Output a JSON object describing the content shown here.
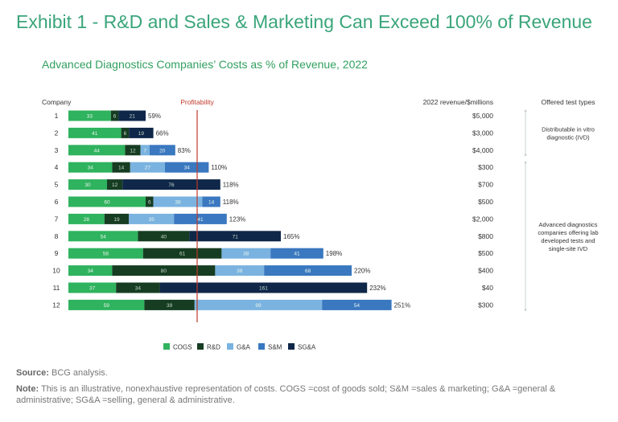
{
  "title": "Exhibit 1 - R&D and Sales & Marketing Can Exceed 100% of Revenue",
  "subtitle": "Advanced Diagnostics Companies’ Costs as % of Revenue, 2022",
  "colors": {
    "cogs": "#2fb35e",
    "rd": "#163d22",
    "ga": "#7ab3e0",
    "sm": "#3a78c0",
    "sga": "#0f2748",
    "profit_line": "#c0392b"
  },
  "chart_data": {
    "type": "bar",
    "orientation": "horizontal",
    "stacked": true,
    "xlabel": "",
    "ylabel": "Company",
    "company_header": "Company",
    "profitability_label": "Profitability",
    "profitability_value": 100,
    "revenue_header": "2022 revenue/$millions",
    "types_header": "Offered test types",
    "categories": [
      "1",
      "2",
      "3",
      "4",
      "5",
      "6",
      "7",
      "8",
      "9",
      "10",
      "11",
      "12"
    ],
    "series": [
      {
        "name": "COGS",
        "values": [
          33,
          41,
          44,
          34,
          30,
          60,
          28,
          54,
          58,
          34,
          37,
          59
        ]
      },
      {
        "name": "R&D",
        "values": [
          6,
          6,
          12,
          14,
          12,
          6,
          19,
          40,
          61,
          80,
          34,
          39
        ]
      },
      {
        "name": "G&A",
        "values": [
          0,
          0,
          7,
          27,
          0,
          38,
          35,
          0,
          38,
          38,
          0,
          99
        ]
      },
      {
        "name": "S&M",
        "values": [
          0,
          0,
          20,
          34,
          0,
          14,
          41,
          0,
          41,
          68,
          0,
          54
        ]
      },
      {
        "name": "SG&A",
        "values": [
          21,
          19,
          0,
          0,
          76,
          0,
          0,
          71,
          0,
          0,
          161,
          0
        ]
      }
    ],
    "totals": [
      "59%",
      "66%",
      "83%",
      "110%",
      "118%",
      "118%",
      "123%",
      "165%",
      "198%",
      "220%",
      "232%",
      "251%"
    ],
    "revenue": [
      "$5,000",
      "$3,000",
      "$4,000",
      "$300",
      "$700",
      "$500",
      "$2,000",
      "$800",
      "$500",
      "$400",
      "$40",
      "$300"
    ],
    "test_types": [
      {
        "label": "Distributable in vitro diagnostic (IVD)",
        "lines": [
          "Distributable in vitro",
          "diagnostic (IVD)"
        ],
        "from": "1",
        "to": "3"
      },
      {
        "label": "Advanced diagnostics companies offering lab developed tests and single-site IVD",
        "lines": [
          "Advanced diagnostics",
          "companies offering lab",
          "developed tests and",
          "single-site IVD"
        ],
        "from": "4",
        "to": "12"
      }
    ],
    "legend_position": "bottom"
  },
  "source": {
    "label": "Source:",
    "text": "BCG analysis."
  },
  "note": {
    "label": "Note:",
    "text": "This is an illustrative, nonexhaustive representation of costs. COGS =cost of goods sold; S&M =sales & marketing; G&A =general & administrative; SG&A =selling, general & administrative."
  }
}
